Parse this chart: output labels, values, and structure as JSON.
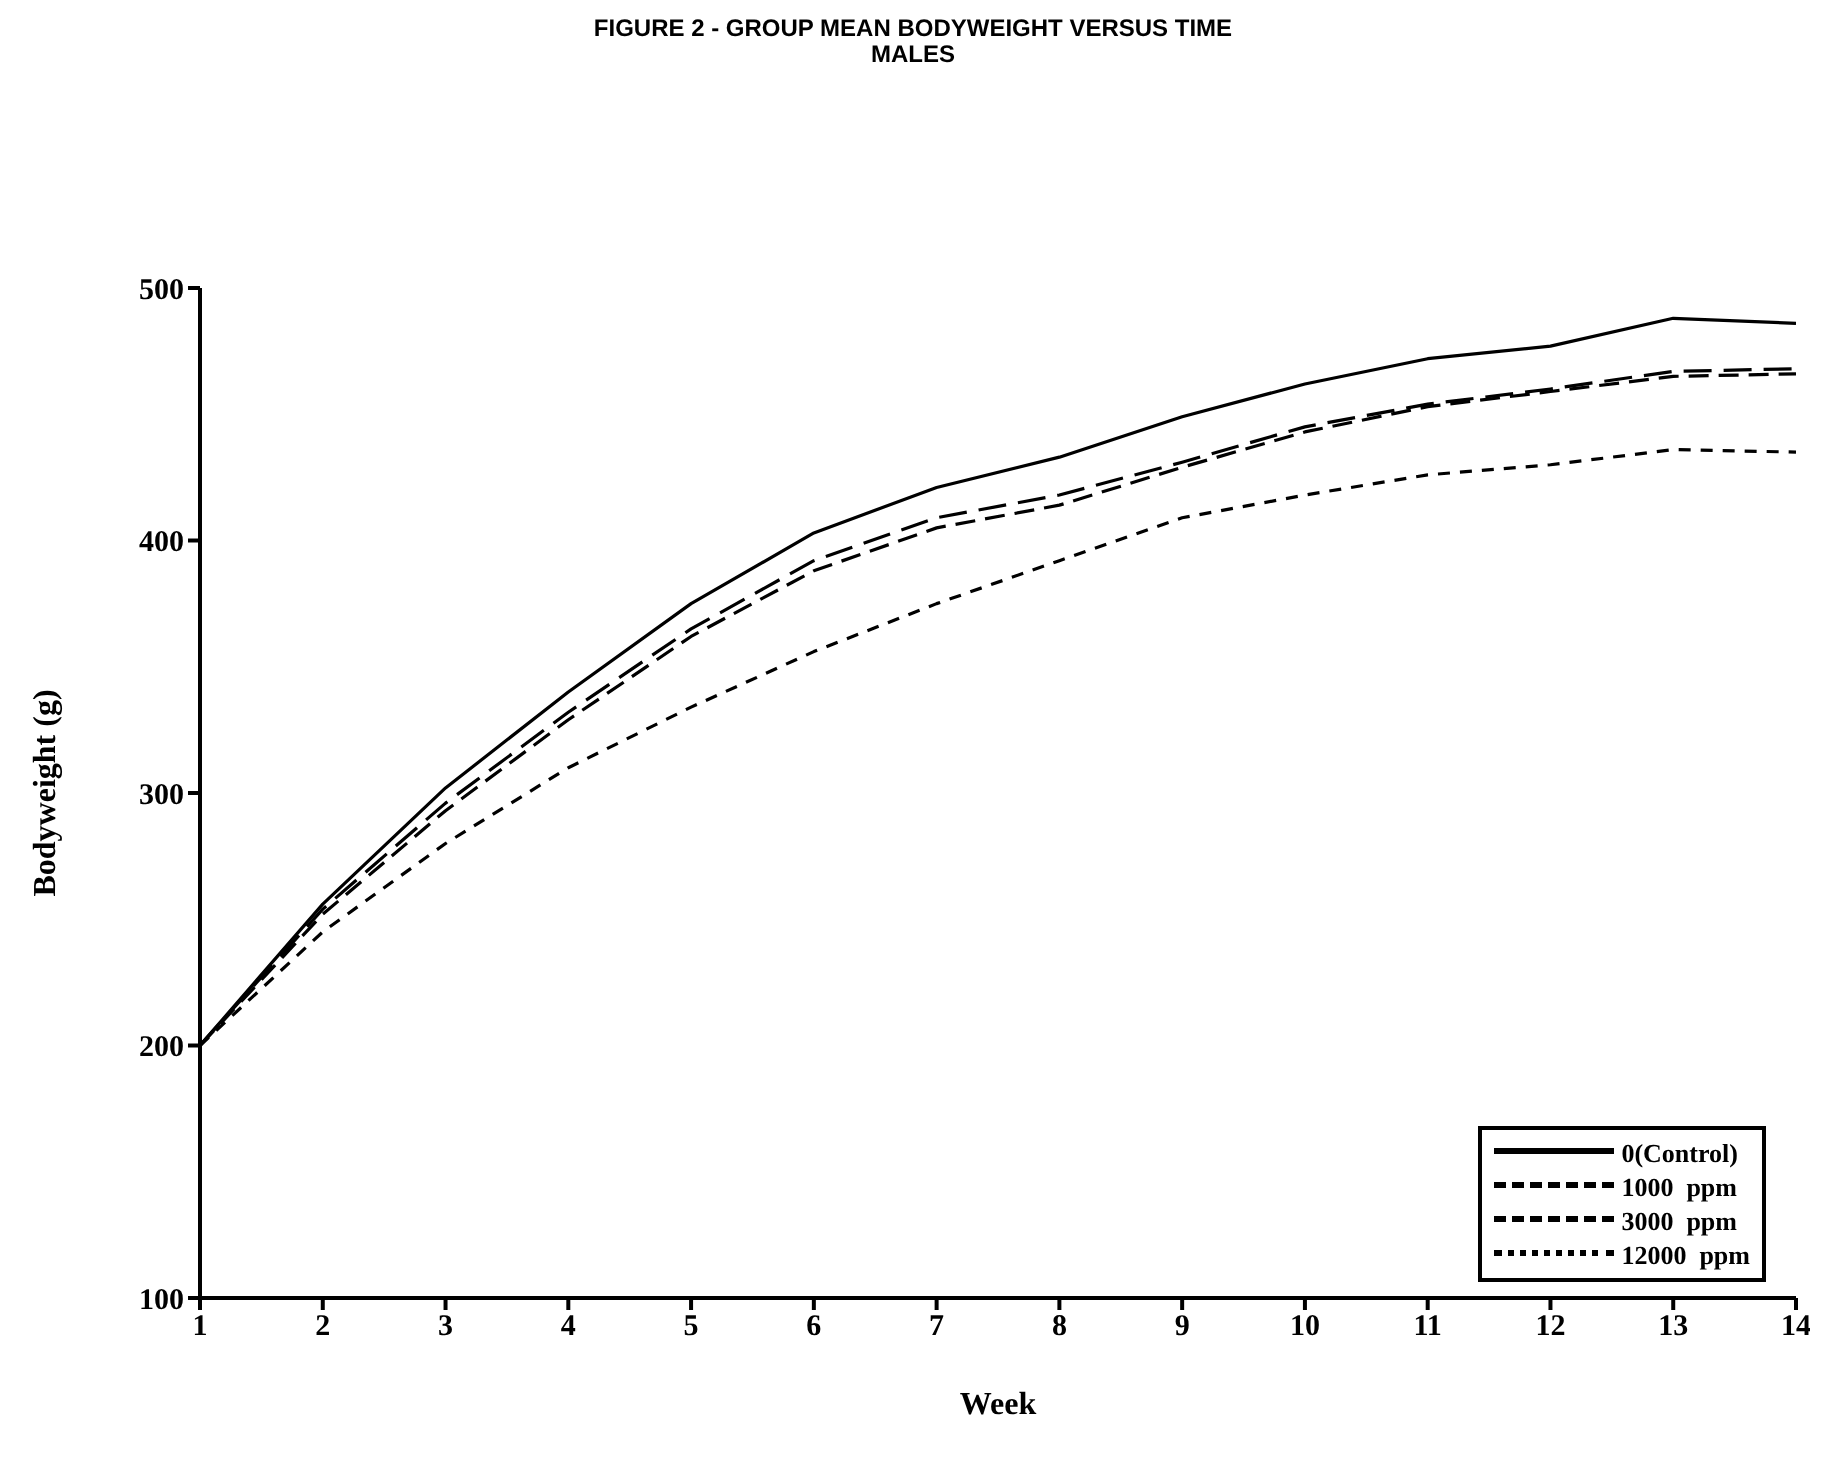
{
  "chart_data": {
    "type": "line",
    "title": "FIGURE 2  - GROUP MEAN BODYWEIGHT VERSUS TIME",
    "subtitle": "MALES",
    "xlabel": "Week",
    "ylabel": "Bodyweight (g)",
    "x": [
      1,
      2,
      3,
      4,
      5,
      6,
      7,
      8,
      9,
      10,
      11,
      12,
      13,
      14
    ],
    "series": [
      {
        "name": "0(Control)",
        "color": "#000000",
        "line_style": "solid",
        "values": [
          200,
          256,
          302,
          340,
          375,
          403,
          421,
          433,
          449,
          462,
          472,
          477,
          488,
          486
        ]
      },
      {
        "name": "1000  ppm",
        "color": "#000000",
        "line_style": "dashed",
        "values": [
          200,
          254,
          296,
          332,
          365,
          392,
          409,
          418,
          431,
          445,
          454,
          460,
          467,
          468
        ]
      },
      {
        "name": "3000  ppm",
        "color": "#000000",
        "line_style": "dashed",
        "values": [
          200,
          252,
          293,
          329,
          362,
          388,
          405,
          414,
          429,
          443,
          453,
          459,
          465,
          466
        ]
      },
      {
        "name": "12000  ppm",
        "color": "#000000",
        "line_style": "dotted",
        "values": [
          200,
          245,
          280,
          310,
          334,
          356,
          375,
          392,
          409,
          418,
          426,
          430,
          436,
          435
        ]
      }
    ],
    "xlim": [
      1,
      14
    ],
    "xticks": [
      1,
      2,
      3,
      4,
      5,
      6,
      7,
      8,
      9,
      10,
      11,
      12,
      13,
      14
    ],
    "ylim": [
      100,
      500
    ],
    "yticks": [
      100,
      200,
      300,
      400,
      500
    ],
    "grid": false,
    "legend": "bottom right",
    "marker": "none"
  }
}
